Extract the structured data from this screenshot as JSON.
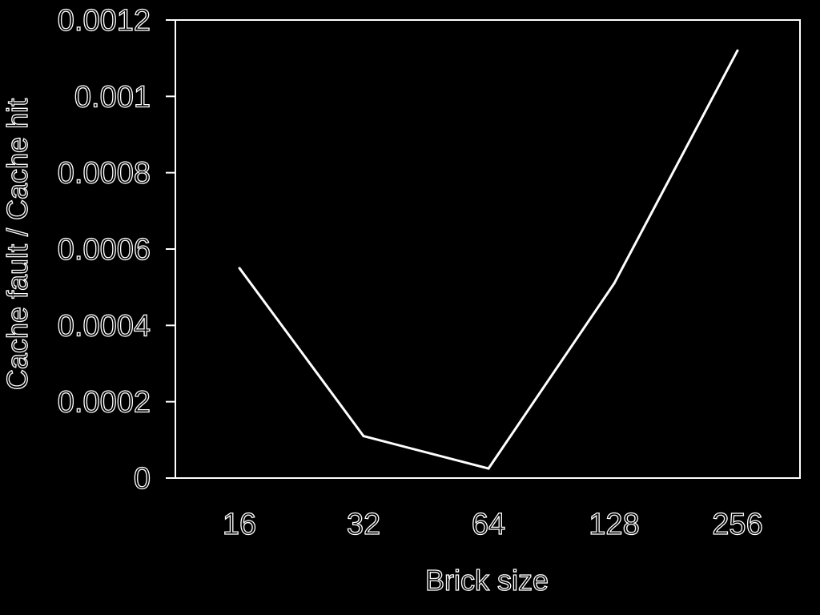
{
  "chart_data": {
    "type": "line",
    "categories": [
      "16",
      "32",
      "64",
      "128",
      "256"
    ],
    "series": [
      {
        "values": [
          0.00055,
          0.00011,
          2.5e-05,
          0.00051,
          0.00112
        ]
      }
    ],
    "xlabel": "Brick size",
    "ylabel": "Cache fault / Cache hit",
    "ylim": [
      0,
      0.0012
    ],
    "yticks": [
      "0",
      "0.0002",
      "0.0004",
      "0.0006",
      "0.0008",
      "0.001",
      "0.0012"
    ],
    "grid": false,
    "background_color": "#000000",
    "line_color": "#ffffff"
  }
}
